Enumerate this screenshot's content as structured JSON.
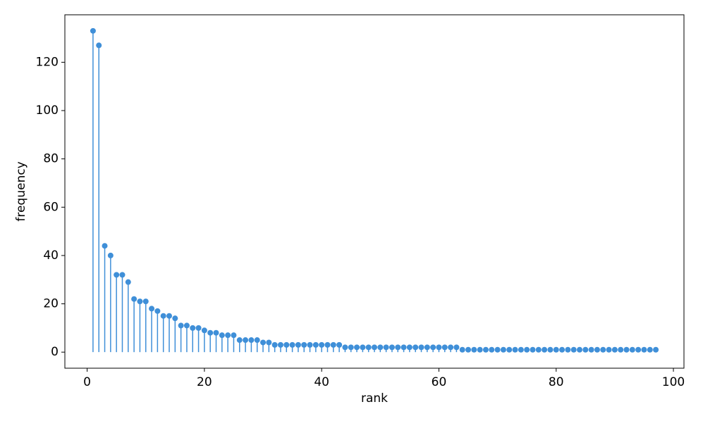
{
  "chart_data": {
    "type": "stem",
    "xlabel": "rank",
    "ylabel": "frequency",
    "color": "#3f8fd8",
    "x": [
      1,
      2,
      3,
      4,
      5,
      6,
      7,
      8,
      9,
      10,
      11,
      12,
      13,
      14,
      15,
      16,
      17,
      18,
      19,
      20,
      21,
      22,
      23,
      24,
      25,
      26,
      27,
      28,
      29,
      30,
      31,
      32,
      33,
      34,
      35,
      36,
      37,
      38,
      39,
      40,
      41,
      42,
      43,
      44,
      45,
      46,
      47,
      48,
      49,
      50,
      51,
      52,
      53,
      54,
      55,
      56,
      57,
      58,
      59,
      60,
      61,
      62,
      63,
      64,
      65,
      66,
      67,
      68,
      69,
      70,
      71,
      72,
      73,
      74,
      75,
      76,
      77,
      78,
      79,
      80,
      81,
      82,
      83,
      84,
      85,
      86,
      87,
      88,
      89,
      90,
      91,
      92,
      93,
      94,
      95,
      96,
      97
    ],
    "values": [
      133,
      127,
      44,
      40,
      32,
      32,
      29,
      22,
      21,
      21,
      18,
      17,
      15,
      15,
      14,
      11,
      11,
      10,
      10,
      9,
      8,
      8,
      7,
      7,
      7,
      5,
      5,
      5,
      5,
      4,
      4,
      3,
      3,
      3,
      3,
      3,
      3,
      3,
      3,
      3,
      3,
      3,
      3,
      2,
      2,
      2,
      2,
      2,
      2,
      2,
      2,
      2,
      2,
      2,
      2,
      2,
      2,
      2,
      2,
      2,
      2,
      2,
      2,
      1,
      1,
      1,
      1,
      1,
      1,
      1,
      1,
      1,
      1,
      1,
      1,
      1,
      1,
      1,
      1,
      1,
      1,
      1,
      1,
      1,
      1,
      1,
      1,
      1,
      1,
      1,
      1,
      1,
      1,
      1,
      1,
      1,
      1
    ],
    "xlim": [
      -3.8,
      101.8
    ],
    "ylim": [
      -6.65,
      139.65
    ],
    "xticks": [
      0,
      20,
      40,
      60,
      80,
      100
    ],
    "yticks": [
      0,
      20,
      40,
      60,
      80,
      100,
      120
    ]
  }
}
